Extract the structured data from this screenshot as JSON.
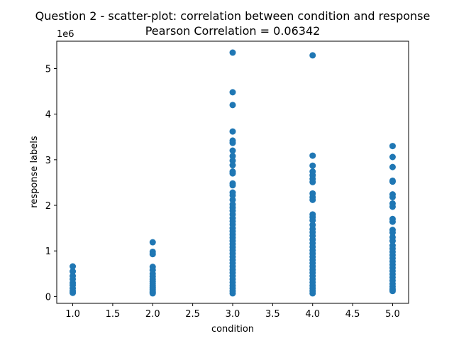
{
  "chart_data": {
    "type": "scatter",
    "title": "Question 2 - scatter-plot: correlation between condition and response",
    "subtitle": "Pearson Correlation = 0.06342",
    "xlabel": "condition",
    "ylabel": "response labels",
    "y_offset_label": "1e6",
    "xlim": [
      0.8,
      5.2
    ],
    "ylim": [
      -0.15,
      5.6
    ],
    "y_scale_factor": 1000000,
    "x_ticks": [
      1.0,
      1.5,
      2.0,
      2.5,
      3.0,
      3.5,
      4.0,
      4.5,
      5.0
    ],
    "x_tick_labels": [
      "1.0",
      "1.5",
      "2.0",
      "2.5",
      "3.0",
      "3.5",
      "4.0",
      "4.5",
      "5.0"
    ],
    "y_ticks": [
      0,
      1,
      2,
      3,
      4,
      5
    ],
    "y_tick_labels": [
      "0",
      "1",
      "2",
      "3",
      "4",
      "5"
    ],
    "grid": false,
    "marker_color": "#1f77b4",
    "series": [
      {
        "name": "",
        "points": [
          {
            "x": 1.0,
            "y": 0.66
          },
          {
            "x": 1.0,
            "y": 0.55
          },
          {
            "x": 1.0,
            "y": 0.45
          },
          {
            "x": 1.0,
            "y": 0.38
          },
          {
            "x": 1.0,
            "y": 0.3
          },
          {
            "x": 1.0,
            "y": 0.25
          },
          {
            "x": 1.0,
            "y": 0.18
          },
          {
            "x": 1.0,
            "y": 0.12
          },
          {
            "x": 1.0,
            "y": 0.08
          },
          {
            "x": 2.0,
            "y": 1.19
          },
          {
            "x": 2.0,
            "y": 0.98
          },
          {
            "x": 2.0,
            "y": 0.93
          },
          {
            "x": 2.0,
            "y": 0.65
          },
          {
            "x": 2.0,
            "y": 0.58
          },
          {
            "x": 2.0,
            "y": 0.5
          },
          {
            "x": 2.0,
            "y": 0.44
          },
          {
            "x": 2.0,
            "y": 0.38
          },
          {
            "x": 2.0,
            "y": 0.33
          },
          {
            "x": 2.0,
            "y": 0.28
          },
          {
            "x": 2.0,
            "y": 0.24
          },
          {
            "x": 2.0,
            "y": 0.2
          },
          {
            "x": 2.0,
            "y": 0.16
          },
          {
            "x": 2.0,
            "y": 0.12
          },
          {
            "x": 2.0,
            "y": 0.09
          },
          {
            "x": 2.0,
            "y": 0.07
          },
          {
            "x": 3.0,
            "y": 5.35
          },
          {
            "x": 3.0,
            "y": 4.48
          },
          {
            "x": 3.0,
            "y": 4.2
          },
          {
            "x": 3.0,
            "y": 3.62
          },
          {
            "x": 3.0,
            "y": 3.42
          },
          {
            "x": 3.0,
            "y": 3.37
          },
          {
            "x": 3.0,
            "y": 3.2
          },
          {
            "x": 3.0,
            "y": 3.08
          },
          {
            "x": 3.0,
            "y": 2.98
          },
          {
            "x": 3.0,
            "y": 2.88
          },
          {
            "x": 3.0,
            "y": 2.74
          },
          {
            "x": 3.0,
            "y": 2.7
          },
          {
            "x": 3.0,
            "y": 2.48
          },
          {
            "x": 3.0,
            "y": 2.44
          },
          {
            "x": 3.0,
            "y": 2.28
          },
          {
            "x": 3.0,
            "y": 2.22
          },
          {
            "x": 3.0,
            "y": 2.12
          },
          {
            "x": 3.0,
            "y": 2.02
          },
          {
            "x": 3.0,
            "y": 1.95
          },
          {
            "x": 3.0,
            "y": 1.88
          },
          {
            "x": 3.0,
            "y": 1.8
          },
          {
            "x": 3.0,
            "y": 1.72
          },
          {
            "x": 3.0,
            "y": 1.65
          },
          {
            "x": 3.0,
            "y": 1.58
          },
          {
            "x": 3.0,
            "y": 1.5
          },
          {
            "x": 3.0,
            "y": 1.43
          },
          {
            "x": 3.0,
            "y": 1.36
          },
          {
            "x": 3.0,
            "y": 1.29
          },
          {
            "x": 3.0,
            "y": 1.22
          },
          {
            "x": 3.0,
            "y": 1.15
          },
          {
            "x": 3.0,
            "y": 1.08
          },
          {
            "x": 3.0,
            "y": 1.01
          },
          {
            "x": 3.0,
            "y": 0.94
          },
          {
            "x": 3.0,
            "y": 0.87
          },
          {
            "x": 3.0,
            "y": 0.8
          },
          {
            "x": 3.0,
            "y": 0.73
          },
          {
            "x": 3.0,
            "y": 0.66
          },
          {
            "x": 3.0,
            "y": 0.59
          },
          {
            "x": 3.0,
            "y": 0.52
          },
          {
            "x": 3.0,
            "y": 0.45
          },
          {
            "x": 3.0,
            "y": 0.38
          },
          {
            "x": 3.0,
            "y": 0.31
          },
          {
            "x": 3.0,
            "y": 0.24
          },
          {
            "x": 3.0,
            "y": 0.18
          },
          {
            "x": 3.0,
            "y": 0.12
          },
          {
            "x": 3.0,
            "y": 0.07
          },
          {
            "x": 4.0,
            "y": 5.29
          },
          {
            "x": 4.0,
            "y": 3.09
          },
          {
            "x": 4.0,
            "y": 2.87
          },
          {
            "x": 4.0,
            "y": 2.74
          },
          {
            "x": 4.0,
            "y": 2.66
          },
          {
            "x": 4.0,
            "y": 2.58
          },
          {
            "x": 4.0,
            "y": 2.51
          },
          {
            "x": 4.0,
            "y": 2.26
          },
          {
            "x": 4.0,
            "y": 2.18
          },
          {
            "x": 4.0,
            "y": 2.12
          },
          {
            "x": 4.0,
            "y": 1.8
          },
          {
            "x": 4.0,
            "y": 1.74
          },
          {
            "x": 4.0,
            "y": 1.67
          },
          {
            "x": 4.0,
            "y": 1.57
          },
          {
            "x": 4.0,
            "y": 1.48
          },
          {
            "x": 4.0,
            "y": 1.41
          },
          {
            "x": 4.0,
            "y": 1.33
          },
          {
            "x": 4.0,
            "y": 1.25
          },
          {
            "x": 4.0,
            "y": 1.17
          },
          {
            "x": 4.0,
            "y": 1.09
          },
          {
            "x": 4.0,
            "y": 1.01
          },
          {
            "x": 4.0,
            "y": 0.94
          },
          {
            "x": 4.0,
            "y": 0.87
          },
          {
            "x": 4.0,
            "y": 0.8
          },
          {
            "x": 4.0,
            "y": 0.73
          },
          {
            "x": 4.0,
            "y": 0.66
          },
          {
            "x": 4.0,
            "y": 0.59
          },
          {
            "x": 4.0,
            "y": 0.52
          },
          {
            "x": 4.0,
            "y": 0.45
          },
          {
            "x": 4.0,
            "y": 0.38
          },
          {
            "x": 4.0,
            "y": 0.31
          },
          {
            "x": 4.0,
            "y": 0.24
          },
          {
            "x": 4.0,
            "y": 0.18
          },
          {
            "x": 4.0,
            "y": 0.12
          },
          {
            "x": 4.0,
            "y": 0.07
          },
          {
            "x": 5.0,
            "y": 3.3
          },
          {
            "x": 5.0,
            "y": 3.06
          },
          {
            "x": 5.0,
            "y": 2.84
          },
          {
            "x": 5.0,
            "y": 2.54
          },
          {
            "x": 5.0,
            "y": 2.52
          },
          {
            "x": 5.0,
            "y": 2.24
          },
          {
            "x": 5.0,
            "y": 2.18
          },
          {
            "x": 5.0,
            "y": 2.04
          },
          {
            "x": 5.0,
            "y": 1.97
          },
          {
            "x": 5.0,
            "y": 1.7
          },
          {
            "x": 5.0,
            "y": 1.64
          },
          {
            "x": 5.0,
            "y": 1.46
          },
          {
            "x": 5.0,
            "y": 1.4
          },
          {
            "x": 5.0,
            "y": 1.3
          },
          {
            "x": 5.0,
            "y": 1.22
          },
          {
            "x": 5.0,
            "y": 1.12
          },
          {
            "x": 5.0,
            "y": 1.05
          },
          {
            "x": 5.0,
            "y": 0.98
          },
          {
            "x": 5.0,
            "y": 0.91
          },
          {
            "x": 5.0,
            "y": 0.84
          },
          {
            "x": 5.0,
            "y": 0.77
          },
          {
            "x": 5.0,
            "y": 0.7
          },
          {
            "x": 5.0,
            "y": 0.63
          },
          {
            "x": 5.0,
            "y": 0.56
          },
          {
            "x": 5.0,
            "y": 0.49
          },
          {
            "x": 5.0,
            "y": 0.42
          },
          {
            "x": 5.0,
            "y": 0.35
          },
          {
            "x": 5.0,
            "y": 0.28
          },
          {
            "x": 5.0,
            "y": 0.22
          },
          {
            "x": 5.0,
            "y": 0.16
          },
          {
            "x": 5.0,
            "y": 0.12
          }
        ]
      }
    ]
  }
}
